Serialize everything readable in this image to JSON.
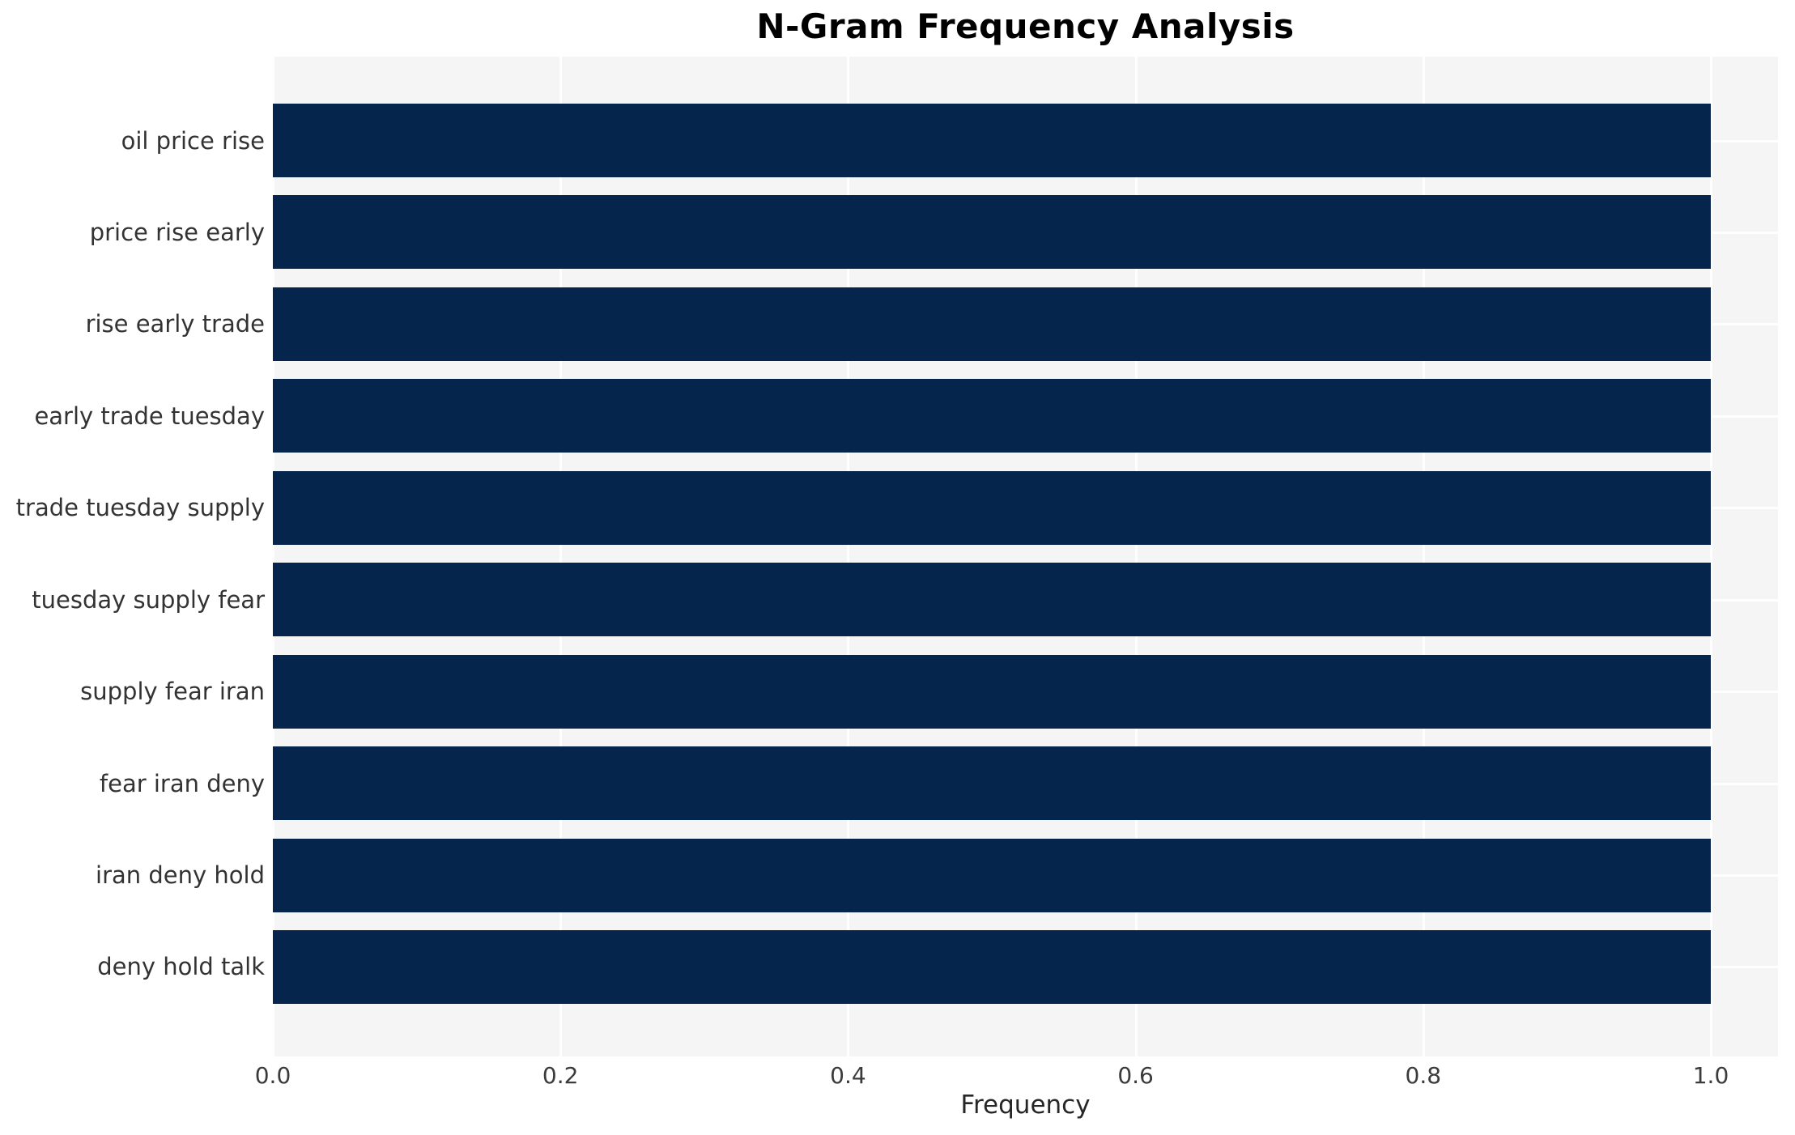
{
  "chart_data": {
    "type": "bar",
    "orientation": "horizontal",
    "title": "N-Gram Frequency Analysis",
    "xlabel": "Frequency",
    "ylabel": "",
    "categories": [
      "oil price rise",
      "price rise early",
      "rise early trade",
      "early trade tuesday",
      "trade tuesday supply",
      "tuesday supply fear",
      "supply fear iran",
      "fear iran deny",
      "iran deny hold",
      "deny hold talk"
    ],
    "values": [
      1.0,
      1.0,
      1.0,
      1.0,
      1.0,
      1.0,
      1.0,
      1.0,
      1.0,
      1.0
    ],
    "xticks": [
      0.0,
      0.2,
      0.4,
      0.6,
      0.8,
      1.0
    ],
    "xtick_labels": [
      "0.0",
      "0.2",
      "0.4",
      "0.6",
      "0.8",
      "1.0"
    ],
    "xlim": [
      0,
      1.047
    ],
    "grid": true,
    "legend": null,
    "colors": {
      "bar": "#05254d",
      "plot_background": "#f5f5f6",
      "gridline": "#ffffff",
      "tick_text": "#3b3b3b",
      "label_text": "#333333",
      "title_text": "#000000"
    }
  }
}
